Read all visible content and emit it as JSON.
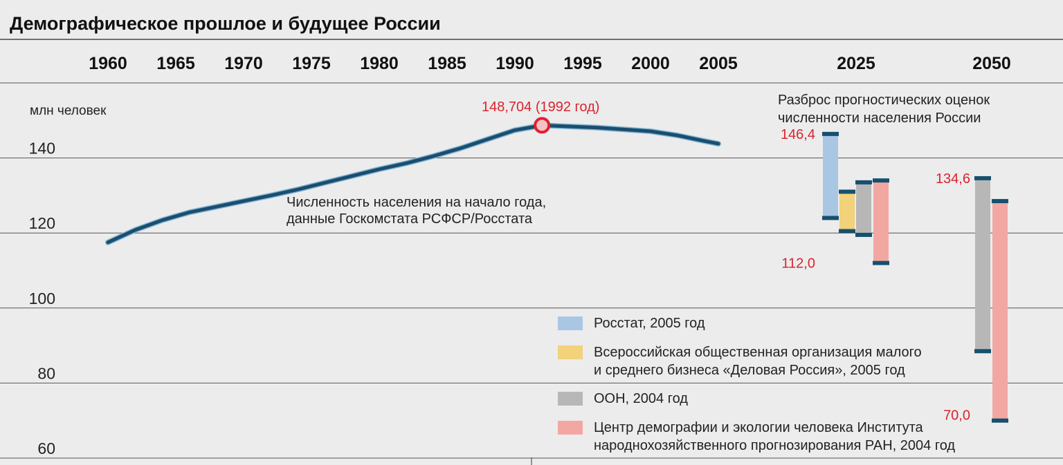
{
  "colors": {
    "line": "#1a4d6e",
    "peak_marker": "#e0202e",
    "range_label": "#d9232e",
    "grid": "#555555",
    "bar_rosstat": "#a9c7e3",
    "bar_delovaya": "#f2d27a",
    "bar_un": "#b7b7b7",
    "bar_cdeh": "#f3a7a2",
    "bar_cap": "#17506e"
  },
  "chart_data": {
    "type": "line",
    "title": "Демографическое прошлое и будущее России",
    "ylabel": "млн человек",
    "ylim": [
      58,
      160
    ],
    "x_ticks": [
      "1960",
      "1965",
      "1970",
      "1975",
      "1980",
      "1985",
      "1990",
      "1995",
      "2000",
      "2005",
      "2025",
      "2050"
    ],
    "y_ticks": [
      "140",
      "120",
      "100",
      "80",
      "60"
    ],
    "series": [
      {
        "name": "Численность населения на начало года, данные Госкомстата РСФСР/Росстата",
        "x": [
          1960,
          1962,
          1964,
          1966,
          1968,
          1970,
          1972,
          1974,
          1976,
          1978,
          1980,
          1982,
          1984,
          1986,
          1988,
          1990,
          1992,
          1994,
          1996,
          1998,
          2000,
          2002,
          2004,
          2005
        ],
        "y": [
          117.5,
          120.8,
          123.4,
          125.5,
          127.0,
          128.5,
          130.0,
          131.6,
          133.4,
          135.2,
          137.0,
          138.6,
          140.5,
          142.6,
          145.0,
          147.4,
          148.7,
          148.4,
          148.1,
          147.6,
          147.1,
          146.0,
          144.5,
          143.8
        ]
      }
    ],
    "peak": {
      "x": 1992,
      "y": 148.704,
      "label": "148,704 (1992 год)"
    },
    "series_label_lines": [
      "Численность населения на начало года,",
      "данные Госкомстата РСФСР/Росстата"
    ],
    "forecast_title_lines": [
      "Разброс прогностических оценок",
      "численности населения России"
    ],
    "forecasts": [
      {
        "year": "2025",
        "source": "rosstat",
        "low": 124.0,
        "high": 146.4
      },
      {
        "year": "2025",
        "source": "delovaya",
        "low": 120.5,
        "high": 131.0
      },
      {
        "year": "2025",
        "source": "un",
        "low": 119.5,
        "high": 133.5
      },
      {
        "year": "2025",
        "source": "cdeh",
        "low": 112.0,
        "high": 134.0
      },
      {
        "year": "2050",
        "source": "un",
        "low": 88.5,
        "high": 134.6
      },
      {
        "year": "2050",
        "source": "cdeh",
        "low": 70.0,
        "high": 128.5
      }
    ],
    "range_labels": [
      {
        "text": "146,4",
        "value": 146.4,
        "year": "2025"
      },
      {
        "text": "112,0",
        "value": 112.0,
        "year": "2025"
      },
      {
        "text": "134,6",
        "value": 134.6,
        "year": "2050"
      },
      {
        "text": "70,0",
        "value": 70.0,
        "year": "2050"
      }
    ],
    "legend": [
      {
        "key": "rosstat",
        "lines": [
          "Росстат, 2005 год"
        ]
      },
      {
        "key": "delovaya",
        "lines": [
          "Всероссийская общественная организация малого",
          "и среднего бизнеса «Деловая Россия», 2005 год"
        ]
      },
      {
        "key": "un",
        "lines": [
          "ООН, 2004 год"
        ]
      },
      {
        "key": "cdeh",
        "lines": [
          "Центр демографии и экологии человека Института",
          "народнохозяйственного прогнозирования РАН, 2004 год"
        ]
      }
    ],
    "grid": true
  }
}
